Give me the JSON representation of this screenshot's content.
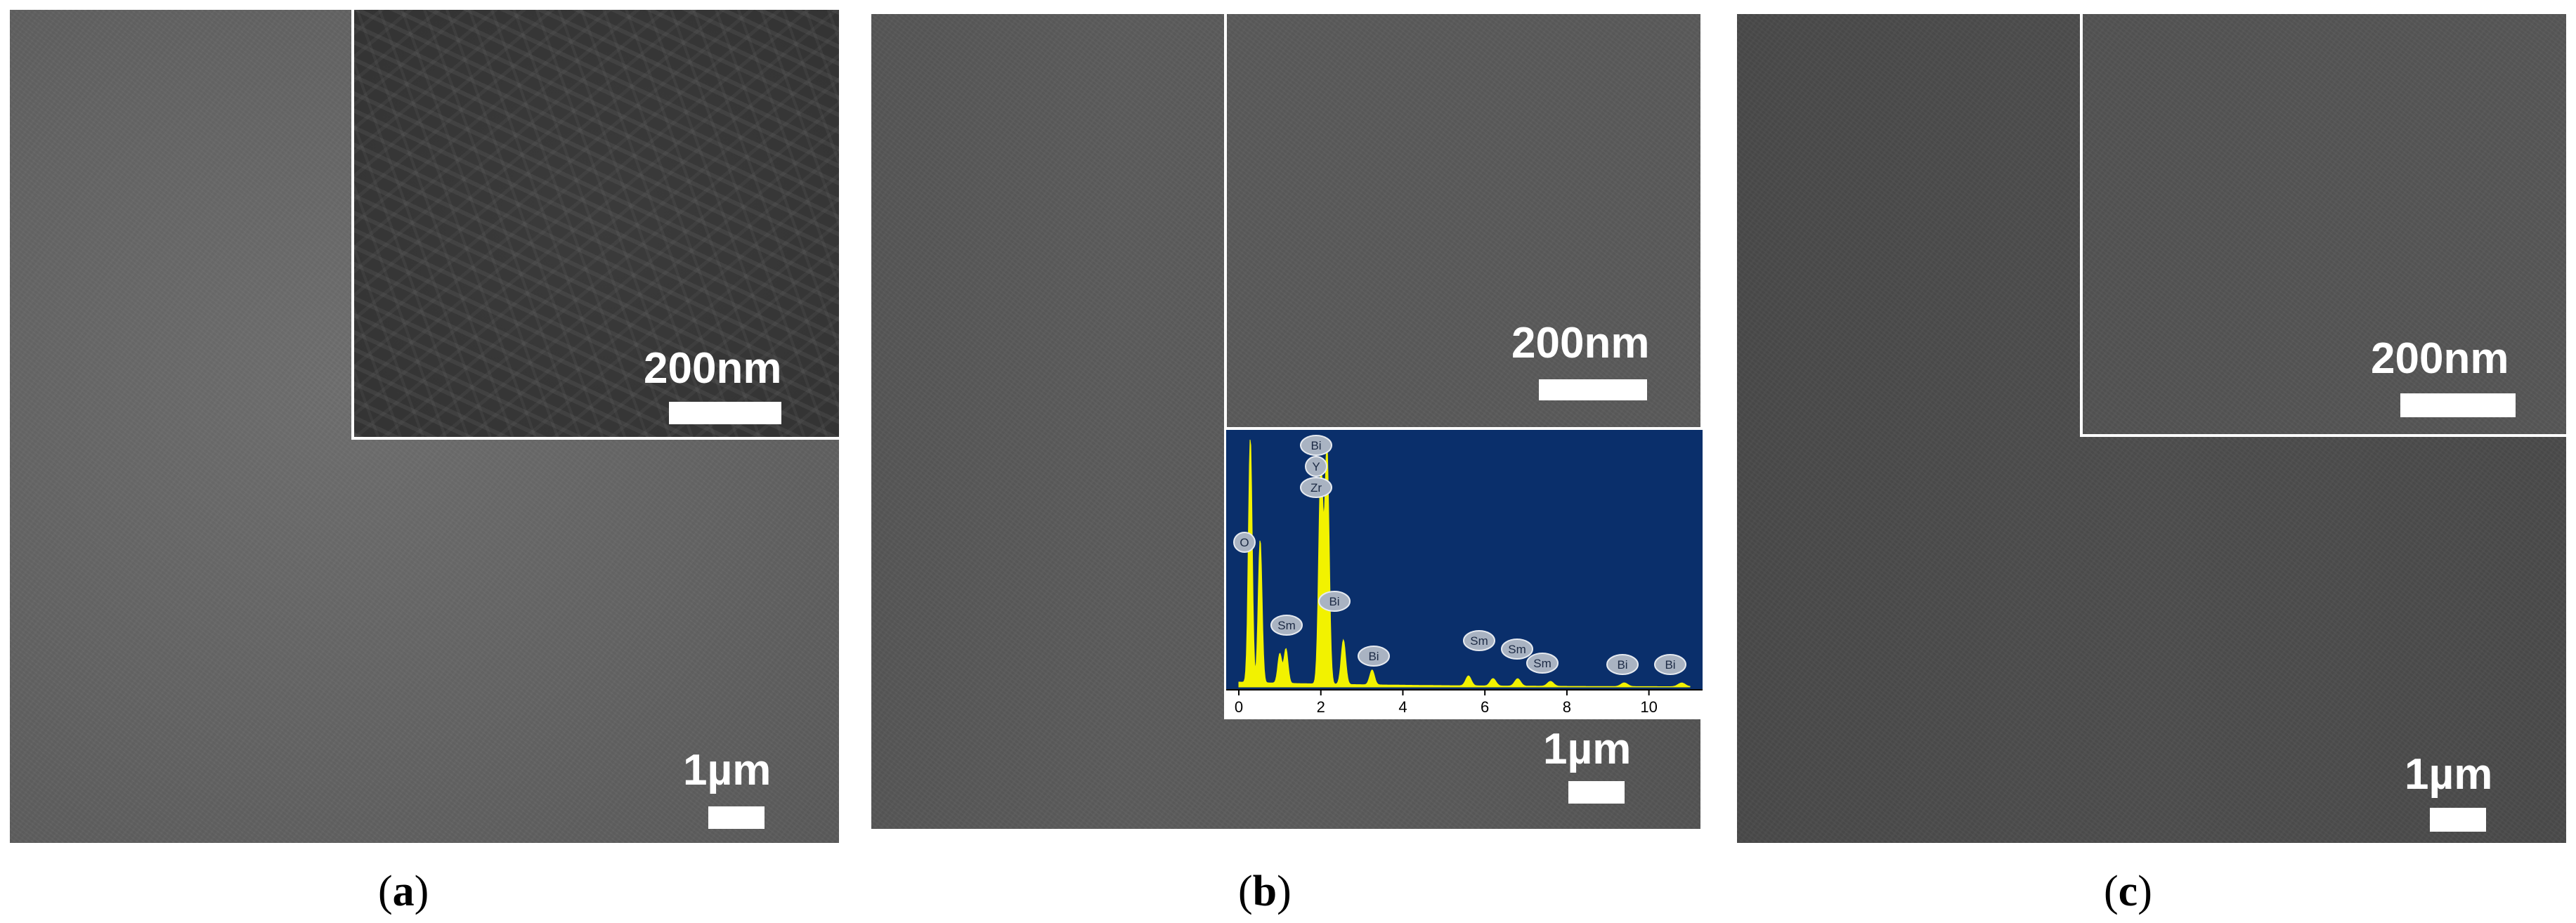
{
  "panels": [
    {
      "id": "a",
      "label_open": "(",
      "label_letter": "a",
      "label_close": ")",
      "main_scale": "1µm",
      "inset_scale": "200nm"
    },
    {
      "id": "b",
      "label_open": "(",
      "label_letter": "b",
      "label_close": ")",
      "main_scale": "1µm",
      "inset_scale": "200nm",
      "eds": {
        "x_ticks": [
          "0",
          "2",
          "4",
          "6",
          "8",
          "10"
        ],
        "peak_labels": [
          "Bi",
          "Y",
          "Zr",
          "O",
          "Sm",
          "Bi",
          "Bi",
          "Sm",
          "Sm",
          "Sm",
          "Bi",
          "Bi"
        ],
        "background_color": "#0a2f6b",
        "spectrum_color": "#f2f200",
        "peaks_kev": [
          {
            "e": 0.28,
            "h": 1.0
          },
          {
            "e": 0.52,
            "h": 0.58
          },
          {
            "e": 1.0,
            "h": 0.12
          },
          {
            "e": 1.15,
            "h": 0.14
          },
          {
            "e": 2.0,
            "h": 0.88
          },
          {
            "e": 2.15,
            "h": 0.95
          },
          {
            "e": 2.55,
            "h": 0.18
          },
          {
            "e": 3.25,
            "h": 0.06
          },
          {
            "e": 5.6,
            "h": 0.04
          },
          {
            "e": 6.2,
            "h": 0.03
          },
          {
            "e": 6.8,
            "h": 0.03
          },
          {
            "e": 7.6,
            "h": 0.02
          },
          {
            "e": 9.4,
            "h": 0.015
          },
          {
            "e": 10.8,
            "h": 0.015
          }
        ]
      }
    },
    {
      "id": "c",
      "label_open": "(",
      "label_letter": "c",
      "label_close": ")",
      "main_scale": "1µm",
      "inset_scale": "200nm"
    }
  ]
}
